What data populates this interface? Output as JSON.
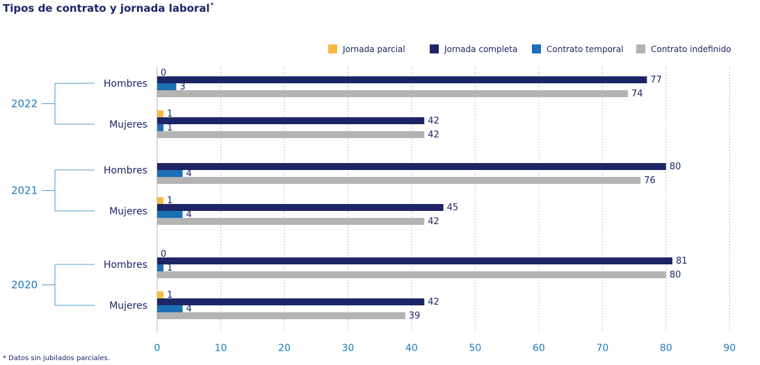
{
  "title": "Tipos de contrato y jornada laboral",
  "title_mark": "*",
  "footnote": "* Datos sin jubilados parciales.",
  "chart_data": {
    "type": "bar",
    "orientation": "horizontal",
    "title": "Tipos de contrato y jornada laboral",
    "xlim": [
      0,
      90
    ],
    "x_ticks": [
      0,
      10,
      20,
      30,
      40,
      50,
      60,
      70,
      80,
      90
    ],
    "grid": "vertical dotted",
    "legend_position": "top-right",
    "series": [
      {
        "name": "Jornada parcial",
        "color": "#f8b943"
      },
      {
        "name": "Jornada completa",
        "color": "#1d2566"
      },
      {
        "name": "Contrato temporal",
        "color": "#1a6fb5"
      },
      {
        "name": "Contrato indefinido",
        "color": "#b3b3b3"
      }
    ],
    "groups": [
      {
        "year": "2022",
        "categories": [
          {
            "label": "Hombres",
            "values": [
              0,
              77,
              3,
              74
            ]
          },
          {
            "label": "Mujeres",
            "values": [
              1,
              42,
              1,
              42
            ]
          }
        ]
      },
      {
        "year": "2021",
        "categories": [
          {
            "label": "Hombres",
            "values": [
              0,
              80,
              4,
              76
            ]
          },
          {
            "label": "Mujeres",
            "values": [
              1,
              45,
              4,
              42
            ]
          }
        ]
      },
      {
        "year": "2020",
        "categories": [
          {
            "label": "Hombres",
            "values": [
              0,
              81,
              1,
              80
            ]
          },
          {
            "label": "Mujeres",
            "values": [
              1,
              42,
              4,
              39
            ]
          }
        ]
      }
    ],
    "value_labels": [
      [
        "0",
        "77",
        "3",
        "74"
      ],
      [
        "1",
        "42",
        "1",
        "42"
      ],
      [
        "",
        "80",
        "4",
        "76"
      ],
      [
        "1",
        "45",
        "4",
        "42"
      ],
      [
        "0",
        "81",
        "1",
        "80"
      ],
      [
        "1",
        "42",
        "4",
        "39"
      ]
    ]
  }
}
